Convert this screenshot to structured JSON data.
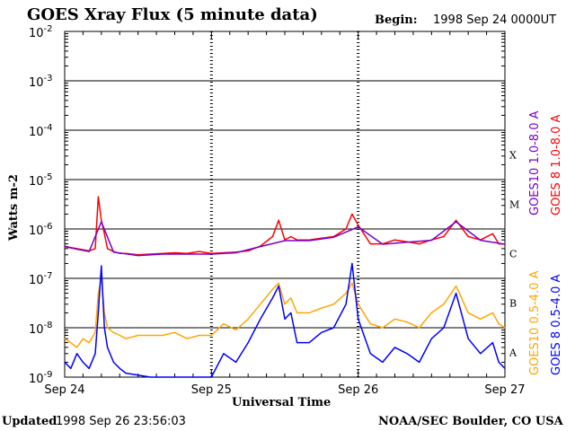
{
  "header": {
    "title": "GOES Xray Flux (5 minute data)",
    "begin_label": "Begin:",
    "begin_value": "1998 Sep 24 0000UT"
  },
  "footer": {
    "updated_label": "Updated",
    "updated_value": "1998 Sep 26 23:56:03",
    "credit": "NOAA/SEC Boulder, CO USA"
  },
  "colors": {
    "goes8_long": "#ff0000",
    "goes10_long": "#7b00c8",
    "goes8_short": "#0000ff",
    "goes10_short": "#ffa500"
  },
  "chart_data": {
    "type": "line",
    "title": "GOES Xray Flux (5 minute data)",
    "xlabel": "Universal Time",
    "ylabel": "Watts m-2",
    "yscale": "log",
    "ylim": [
      1e-09,
      0.01
    ],
    "xlim": [
      0,
      72
    ],
    "x_units": "hours since 1998 Sep 24 0000UT",
    "x_ticks": [
      {
        "x": 0,
        "label": "Sep 24"
      },
      {
        "x": 24,
        "label": "Sep 25"
      },
      {
        "x": 48,
        "label": "Sep 26"
      },
      {
        "x": 72,
        "label": "Sep 27"
      }
    ],
    "y_ticks": [
      {
        "exp": -2,
        "label": "10",
        "sup": "-2"
      },
      {
        "exp": -3,
        "label": "10",
        "sup": "-3"
      },
      {
        "exp": -4,
        "label": "10",
        "sup": "-4"
      },
      {
        "exp": -5,
        "label": "10",
        "sup": "-5"
      },
      {
        "exp": -6,
        "label": "10",
        "sup": "-6"
      },
      {
        "exp": -7,
        "label": "10",
        "sup": "-7"
      },
      {
        "exp": -8,
        "label": "10",
        "sup": "-8"
      },
      {
        "exp": -9,
        "label": "10",
        "sup": "-9"
      }
    ],
    "flare_classes": [
      {
        "label": "X",
        "exp": -4
      },
      {
        "label": "M",
        "exp": -5
      },
      {
        "label": "C",
        "exp": -6
      },
      {
        "label": "B",
        "exp": -7
      },
      {
        "label": "A",
        "exp": -8
      }
    ],
    "grid": true,
    "legend_placement": "right",
    "series": [
      {
        "name": "GOES 8 1.0-8.0 A",
        "color": "#ff0000",
        "x": [
          0,
          1,
          2,
          3,
          4,
          5,
          5.5,
          6,
          6.5,
          7,
          8,
          9,
          10,
          12,
          14,
          16,
          18,
          20,
          22,
          24,
          26,
          28,
          30,
          32,
          34,
          35,
          36,
          37,
          38,
          40,
          42,
          44,
          46,
          47,
          48,
          50,
          52,
          54,
          56,
          58,
          60,
          62,
          64,
          66,
          68,
          70,
          71,
          72
        ],
        "y": [
          4.5e-07,
          4.2e-07,
          4e-07,
          3.8e-07,
          3.6e-07,
          4e-07,
          4.5e-06,
          1.5e-06,
          8e-07,
          4e-07,
          3.5e-07,
          3.2e-07,
          3.2e-07,
          3e-07,
          3.1e-07,
          3.2e-07,
          3.3e-07,
          3.2e-07,
          3.5e-07,
          3.2e-07,
          3.3e-07,
          3.4e-07,
          3.6e-07,
          4.5e-07,
          7e-07,
          1.5e-06,
          6e-07,
          7e-07,
          6e-07,
          6e-07,
          6.5e-07,
          7e-07,
          1e-06,
          2e-06,
          1.2e-06,
          5e-07,
          5e-07,
          6e-07,
          5.5e-07,
          5e-07,
          6e-07,
          7e-07,
          1.5e-06,
          7e-07,
          6e-07,
          8e-07,
          5e-07,
          5e-07
        ]
      },
      {
        "name": "GOES10 1.0-8.0 A",
        "color": "#7b00c8",
        "x": [
          0,
          2,
          4,
          6,
          8,
          12,
          16,
          20,
          24,
          28,
          32,
          36,
          40,
          44,
          48,
          52,
          56,
          60,
          64,
          68,
          72
        ],
        "y": [
          4.4e-07,
          3.9e-07,
          3.5e-07,
          1.4e-06,
          3.4e-07,
          2.9e-07,
          3.1e-07,
          3.1e-07,
          3.1e-07,
          3.3e-07,
          4.4e-07,
          5.8e-07,
          5.8e-07,
          6.8e-07,
          1.1e-06,
          4.9e-07,
          5.4e-07,
          5.9e-07,
          1.4e-06,
          5.9e-07,
          4.9e-07
        ]
      },
      {
        "name": "GOES10 0.5-4.0 A",
        "color": "#ffa500",
        "x": [
          0,
          1,
          2,
          3,
          4,
          5,
          5.5,
          6,
          6.5,
          7,
          8,
          9,
          10,
          12,
          14,
          16,
          18,
          20,
          22,
          24,
          26,
          28,
          30,
          32,
          34,
          35,
          36,
          37,
          38,
          40,
          42,
          44,
          46,
          47,
          48,
          50,
          52,
          54,
          56,
          58,
          60,
          62,
          64,
          66,
          68,
          70,
          71,
          72
        ],
        "y": [
          6e-09,
          5e-09,
          4e-09,
          6e-09,
          5e-09,
          8e-09,
          5e-08,
          1e-07,
          2e-08,
          1e-08,
          8e-09,
          7e-09,
          6e-09,
          7e-09,
          7e-09,
          7e-09,
          8e-09,
          6e-09,
          7e-09,
          7e-09,
          1.2e-08,
          9e-09,
          1.5e-08,
          3e-08,
          6e-08,
          8e-08,
          3e-08,
          4e-08,
          2e-08,
          2e-08,
          2.5e-08,
          3e-08,
          5e-08,
          8e-08,
          3e-08,
          1.2e-08,
          1e-08,
          1.5e-08,
          1.3e-08,
          1e-08,
          2e-08,
          3e-08,
          7e-08,
          2e-08,
          1.5e-08,
          2e-08,
          1.2e-08,
          1e-08
        ]
      },
      {
        "name": "GOES 8 0.5-4.0 A",
        "color": "#0000ff",
        "x": [
          0,
          1,
          2,
          3,
          4,
          5,
          5.5,
          6,
          6.5,
          7,
          8,
          9,
          10,
          12,
          14,
          16,
          18,
          20,
          22,
          24,
          26,
          28,
          30,
          32,
          34,
          35,
          36,
          37,
          38,
          40,
          42,
          44,
          46,
          47,
          48,
          50,
          52,
          54,
          56,
          58,
          60,
          62,
          64,
          66,
          68,
          70,
          71,
          72
        ],
        "y": [
          2e-09,
          1.5e-09,
          3e-09,
          2e-09,
          1.5e-09,
          3e-09,
          2e-08,
          1.8e-07,
          1e-08,
          4e-09,
          2e-09,
          1.5e-09,
          1.2e-09,
          1.1e-09,
          1e-09,
          1e-09,
          1e-09,
          1e-09,
          1e-09,
          1e-09,
          3e-09,
          2e-09,
          5e-09,
          1.5e-08,
          4e-08,
          7e-08,
          1.5e-08,
          2e-08,
          5e-09,
          5e-09,
          8e-09,
          1e-08,
          3e-08,
          2e-07,
          1.5e-08,
          3e-09,
          2e-09,
          4e-09,
          3e-09,
          2e-09,
          6e-09,
          1e-08,
          5e-08,
          6e-09,
          3e-09,
          5e-09,
          2e-09,
          1.5e-09
        ]
      }
    ]
  }
}
